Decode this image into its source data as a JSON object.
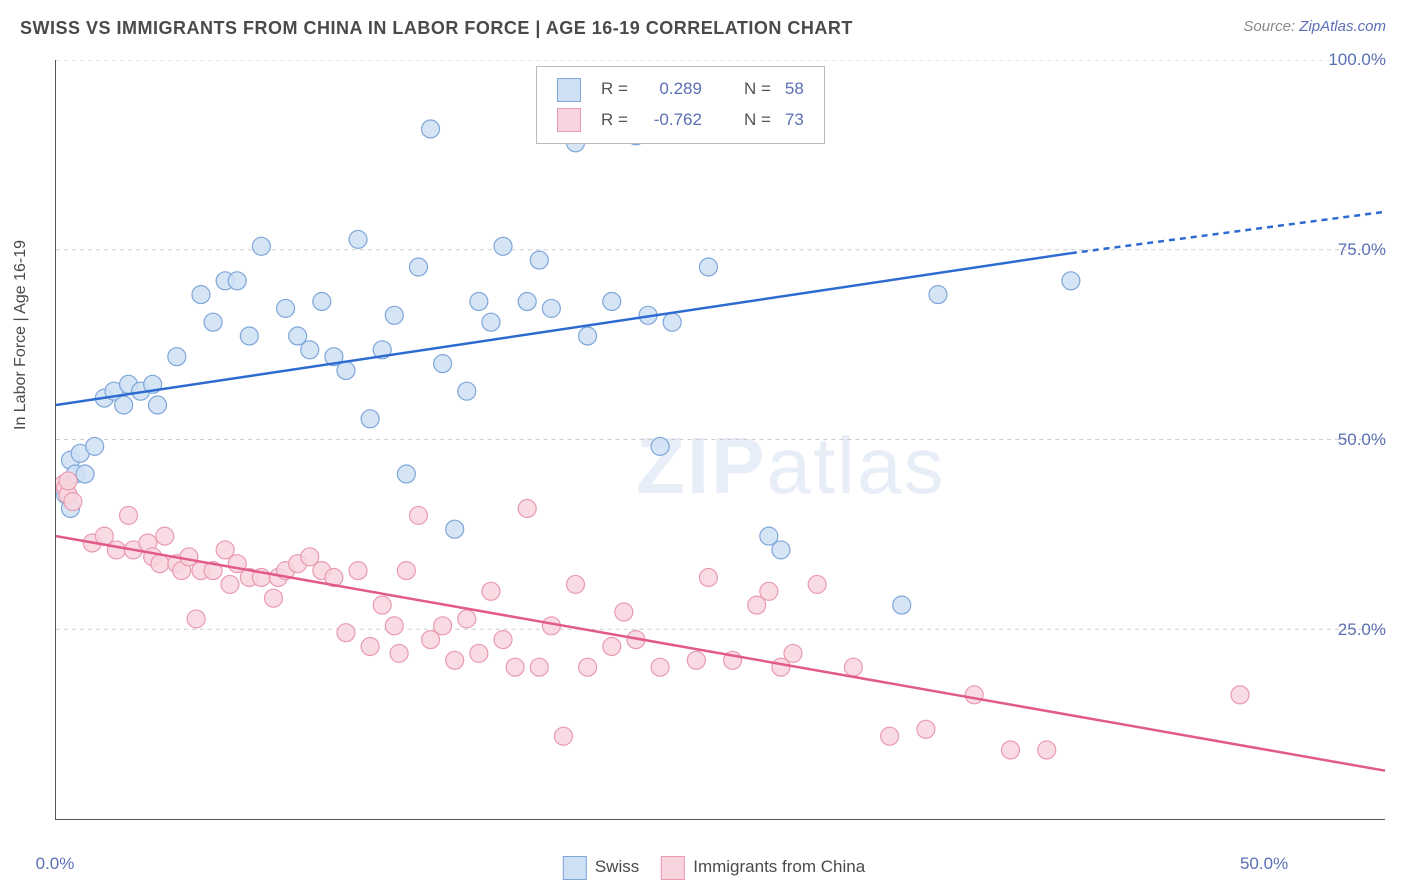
{
  "title": "SWISS VS IMMIGRANTS FROM CHINA IN LABOR FORCE | AGE 16-19 CORRELATION CHART",
  "source_prefix": "Source: ",
  "source_link": "ZipAtlas.com",
  "y_axis_label": "In Labor Force | Age 16-19",
  "watermark": {
    "bold": "ZIP",
    "rest": "atlas"
  },
  "chart": {
    "type": "scatter-with-regression",
    "background_color": "#ffffff",
    "grid_color": "#cccccc",
    "axis_color": "#555555",
    "x_domain": [
      0,
      55
    ],
    "y_domain": [
      0,
      110
    ],
    "x_ticks_major": [
      0,
      50
    ],
    "x_ticks_minor": [
      5,
      10,
      15,
      20,
      25,
      30,
      35,
      40,
      45
    ],
    "x_tick_labels": [
      {
        "at": 0,
        "label": "0.0%"
      },
      {
        "at": 50,
        "label": "50.0%"
      }
    ],
    "y_gridlines": [
      27.5,
      55,
      82.5,
      110
    ],
    "y_tick_labels": [
      {
        "at": 27.5,
        "label": "25.0%"
      },
      {
        "at": 55,
        "label": "50.0%"
      },
      {
        "at": 82.5,
        "label": "75.0%"
      },
      {
        "at": 110,
        "label": "100.0%"
      }
    ],
    "marker_radius": 9,
    "marker_stroke_width": 1.2,
    "line_width": 2.5,
    "series": [
      {
        "key": "swiss",
        "label": "Swiss",
        "fill": "#cfe0f5",
        "stroke": "#7ea6d9",
        "line_color": "#2e6bd1",
        "R": "0.289",
        "N": "58",
        "regression": {
          "x1": 0,
          "y1": 60,
          "x2": 42,
          "y2": 82,
          "extend_to_x": 55,
          "extend_y": 88
        },
        "points": [
          [
            0.4,
            47
          ],
          [
            0.6,
            52
          ],
          [
            0.6,
            45
          ],
          [
            0.8,
            50
          ],
          [
            1.0,
            53
          ],
          [
            1.2,
            50
          ],
          [
            1.6,
            54
          ],
          [
            2.0,
            61
          ],
          [
            2.4,
            62
          ],
          [
            2.8,
            60
          ],
          [
            3.0,
            63
          ],
          [
            3.5,
            62
          ],
          [
            4.0,
            63
          ],
          [
            4.2,
            60
          ],
          [
            5.0,
            67
          ],
          [
            6.0,
            76
          ],
          [
            6.5,
            72
          ],
          [
            7.0,
            78
          ],
          [
            7.5,
            78
          ],
          [
            8.0,
            70
          ],
          [
            8.5,
            83
          ],
          [
            9.5,
            74
          ],
          [
            10.0,
            70
          ],
          [
            10.5,
            68
          ],
          [
            11.0,
            75
          ],
          [
            11.5,
            67
          ],
          [
            12.0,
            65
          ],
          [
            12.5,
            84
          ],
          [
            13.0,
            58
          ],
          [
            13.5,
            68
          ],
          [
            14.0,
            73
          ],
          [
            14.5,
            50
          ],
          [
            15.0,
            80
          ],
          [
            15.5,
            100
          ],
          [
            16.0,
            66
          ],
          [
            16.5,
            42
          ],
          [
            17.0,
            62
          ],
          [
            17.5,
            75
          ],
          [
            18.0,
            72
          ],
          [
            18.5,
            83
          ],
          [
            19.5,
            75
          ],
          [
            20.0,
            81
          ],
          [
            20.5,
            74
          ],
          [
            21.5,
            98
          ],
          [
            22.0,
            70
          ],
          [
            22.5,
            100
          ],
          [
            23.0,
            75
          ],
          [
            24.0,
            99
          ],
          [
            24.5,
            73
          ],
          [
            25.0,
            54
          ],
          [
            25.5,
            72
          ],
          [
            27.0,
            80
          ],
          [
            29.5,
            41
          ],
          [
            30.0,
            39
          ],
          [
            33.0,
            113
          ],
          [
            35.0,
            31
          ],
          [
            36.5,
            76
          ],
          [
            42.0,
            78
          ]
        ]
      },
      {
        "key": "china",
        "label": "Immigrants from China",
        "fill": "#f8d5de",
        "stroke": "#e99ab1",
        "line_color": "#e15a8a",
        "R": "-0.762",
        "N": "73",
        "regression": {
          "x1": 0,
          "y1": 41,
          "x2": 55,
          "y2": 7,
          "extend_to_x": 55,
          "extend_y": 7
        },
        "points": [
          [
            0.3,
            48.5
          ],
          [
            0.4,
            48
          ],
          [
            0.5,
            47
          ],
          [
            0.5,
            49
          ],
          [
            0.7,
            46
          ],
          [
            1.5,
            40
          ],
          [
            2.0,
            41
          ],
          [
            2.5,
            39
          ],
          [
            3.0,
            44
          ],
          [
            3.2,
            39
          ],
          [
            3.8,
            40
          ],
          [
            4.0,
            38
          ],
          [
            4.3,
            37
          ],
          [
            4.5,
            41
          ],
          [
            5.0,
            37
          ],
          [
            5.2,
            36
          ],
          [
            5.5,
            38
          ],
          [
            5.8,
            29
          ],
          [
            6.0,
            36
          ],
          [
            6.5,
            36
          ],
          [
            7.0,
            39
          ],
          [
            7.2,
            34
          ],
          [
            7.5,
            37
          ],
          [
            8.0,
            35
          ],
          [
            8.5,
            35
          ],
          [
            9.0,
            32
          ],
          [
            9.2,
            35
          ],
          [
            9.5,
            36
          ],
          [
            10.0,
            37
          ],
          [
            10.5,
            38
          ],
          [
            11.0,
            36
          ],
          [
            11.5,
            35
          ],
          [
            12.0,
            27
          ],
          [
            12.5,
            36
          ],
          [
            13.0,
            25
          ],
          [
            13.5,
            31
          ],
          [
            14.0,
            28
          ],
          [
            14.2,
            24
          ],
          [
            14.5,
            36
          ],
          [
            15.0,
            44
          ],
          [
            15.5,
            26
          ],
          [
            16.0,
            28
          ],
          [
            16.5,
            23
          ],
          [
            17.0,
            29
          ],
          [
            17.5,
            24
          ],
          [
            18.0,
            33
          ],
          [
            18.5,
            26
          ],
          [
            19.0,
            22
          ],
          [
            19.5,
            45
          ],
          [
            20.0,
            22
          ],
          [
            20.5,
            28
          ],
          [
            21.0,
            12
          ],
          [
            21.5,
            34
          ],
          [
            22.0,
            22
          ],
          [
            23.0,
            25
          ],
          [
            23.5,
            30
          ],
          [
            24.0,
            26
          ],
          [
            25.0,
            22
          ],
          [
            26.5,
            23
          ],
          [
            27.0,
            35
          ],
          [
            28.0,
            23
          ],
          [
            29.0,
            31
          ],
          [
            29.5,
            33
          ],
          [
            30.0,
            22
          ],
          [
            30.5,
            24
          ],
          [
            31.5,
            34
          ],
          [
            33.0,
            22
          ],
          [
            34.5,
            12
          ],
          [
            36.0,
            13
          ],
          [
            38.0,
            18
          ],
          [
            39.5,
            10
          ],
          [
            41.0,
            10
          ],
          [
            49.0,
            18
          ]
        ]
      }
    ],
    "legend_top": {
      "R_label": "R =",
      "N_label": "N =",
      "value_color": "#5b6fb5"
    }
  }
}
